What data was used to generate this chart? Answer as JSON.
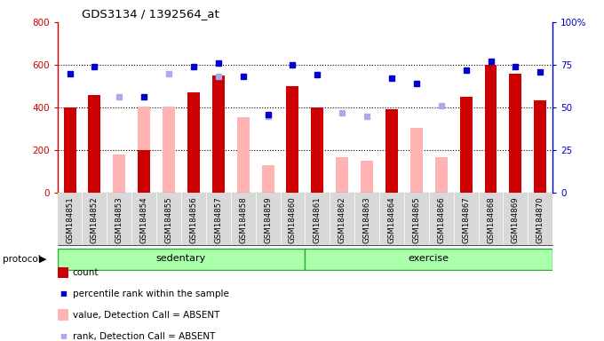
{
  "title": "GDS3134 / 1392564_at",
  "samples": [
    "GSM184851",
    "GSM184852",
    "GSM184853",
    "GSM184854",
    "GSM184855",
    "GSM184856",
    "GSM184857",
    "GSM184858",
    "GSM184859",
    "GSM184860",
    "GSM184861",
    "GSM184862",
    "GSM184863",
    "GSM184864",
    "GSM184865",
    "GSM184866",
    "GSM184867",
    "GSM184868",
    "GSM184869",
    "GSM184870"
  ],
  "count_values": [
    400,
    460,
    null,
    200,
    null,
    470,
    550,
    null,
    null,
    500,
    400,
    null,
    null,
    390,
    null,
    null,
    450,
    600,
    560,
    435
  ],
  "absent_value_bars": [
    null,
    null,
    180,
    405,
    405,
    null,
    null,
    355,
    130,
    null,
    null,
    165,
    150,
    null,
    305,
    165,
    null,
    null,
    null,
    null
  ],
  "percentile_rank_dots": [
    70,
    74,
    null,
    56,
    null,
    74,
    76,
    68,
    46,
    75,
    69,
    null,
    null,
    67,
    64,
    null,
    72,
    77,
    74,
    71
  ],
  "absent_rank_dots": [
    null,
    null,
    56,
    null,
    70,
    null,
    68,
    null,
    45,
    null,
    null,
    47,
    45,
    null,
    null,
    51,
    null,
    null,
    null,
    null
  ],
  "ylim_left": [
    0,
    800
  ],
  "ylim_right": [
    0,
    100
  ],
  "yticks_left": [
    0,
    200,
    400,
    600,
    800
  ],
  "yticks_right": [
    0,
    25,
    50,
    75,
    100
  ],
  "ytick_labels_right": [
    "0",
    "25",
    "50",
    "75",
    "100%"
  ],
  "left_axis_color": "#cc0000",
  "right_axis_color": "#0000cc",
  "bar_color_count": "#cc0000",
  "bar_color_absent_value": "#ffb3b3",
  "dot_color_percentile": "#0000cc",
  "dot_color_absent_rank": "#aaaaee",
  "bg_color": "#ffffff",
  "protocol_bar_color": "#aaffaa",
  "protocol_bar_border": "#33aa33",
  "xtick_area_color": "#d8d8d8",
  "bar_width": 0.5
}
